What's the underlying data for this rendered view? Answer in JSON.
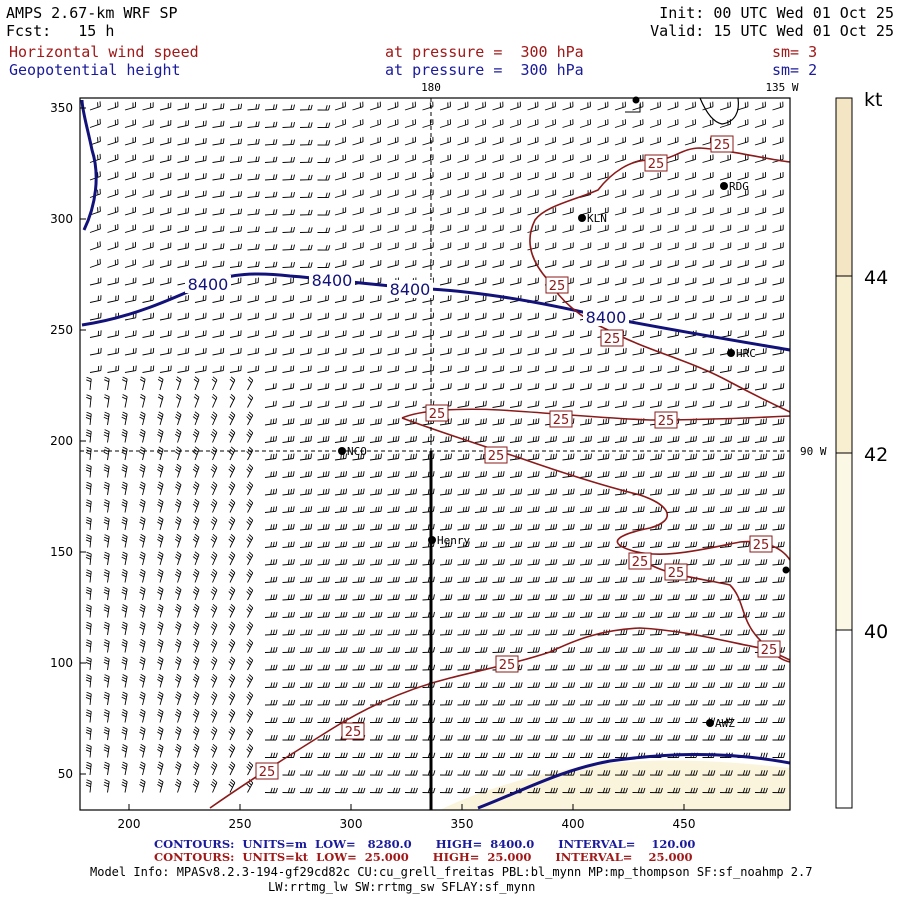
{
  "header": {
    "model": "AMPS 2.67-km WRF SP",
    "fcst": "Fcst:   15 h",
    "init": "Init: 00 UTC Wed 01 Oct 25",
    "valid": "Valid: 15 UTC Wed 01 Oct 25",
    "field1": {
      "name": "Horizontal wind speed",
      "pressure": "at pressure =  300 hPa",
      "sm": "sm= 3"
    },
    "field2": {
      "name": "Geopotential height",
      "pressure": "at pressure =  300 hPa",
      "sm": "sm= 2"
    }
  },
  "map": {
    "lon_labels": {
      "top_180": "180",
      "top_135w": "135 W",
      "right_90w": "90 W"
    },
    "x_ticks": [
      "200",
      "250",
      "300",
      "350",
      "400",
      "450"
    ],
    "y_ticks": [
      "350",
      "300",
      "250",
      "200",
      "150",
      "100",
      "50"
    ],
    "stations": [
      "RDG",
      "KLN",
      "HRC",
      "NCO",
      "Henry",
      "AWZ"
    ],
    "height_contour_labels": [
      "8400",
      "8400",
      "8400",
      "8400"
    ],
    "speed_contour_label": "25",
    "colorbar": {
      "unit": "kt",
      "ticks": [
        "44",
        "42",
        "40"
      ],
      "colors": [
        "#ffffff",
        "#fcf8e6",
        "#f8eed0",
        "#f4e6c4"
      ]
    },
    "colors": {
      "wind_barb": "#000000",
      "height_contour": "#12127a",
      "speed_contour": "#8b1a1a",
      "fill_light": "#fbf4dc"
    }
  },
  "footer": {
    "contours_height": "CONTOURS:  UNITS=m  LOW=   8280.0      HIGH=  8400.0      INTERVAL=    120.00",
    "contours_speed": "CONTOURS:  UNITS=kt  LOW=  25.000      HIGH=  25.000      INTERVAL=    25.000",
    "model_info": "Model Info: MPASv8.2.3-194-gf29cd82c CU:cu_grell_freitas PBL:bl_mynn MP:mp_thompson SF:sf_noahmp 2.7",
    "model_info2": "LW:rrtmg_lw SW:rrtmg_sw SFLAY:sf_mynn"
  }
}
